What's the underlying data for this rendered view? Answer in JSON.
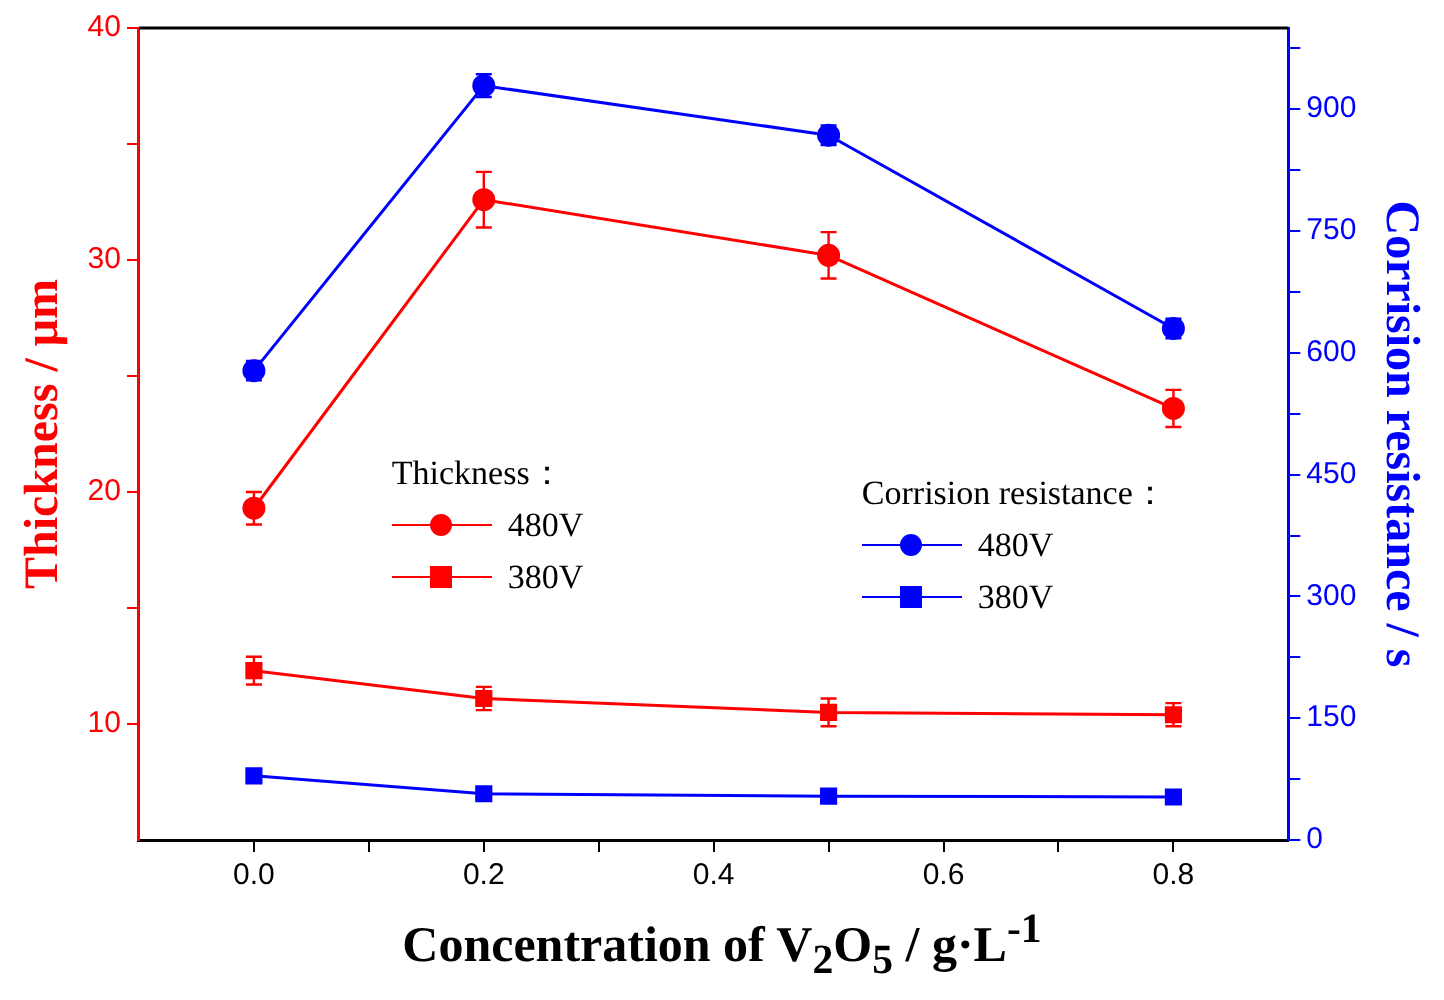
{
  "chart_data": {
    "type": "line",
    "x": [
      0,
      0.2,
      0.5,
      0.8
    ],
    "xlabel": "Concentration of V$_{2}$O$_{5}$ / g·L$^{-1}$",
    "ylabel": "Thickness / μm",
    "y2label": "Corrision resistance / s",
    "xlim": [
      -0.1,
      0.9
    ],
    "xticks": [
      {
        "value": 0,
        "label": "0.0"
      },
      {
        "value": 0.1,
        "label": null
      },
      0.2,
      {
        "value": 0.3,
        "label": null
      },
      0.4,
      {
        "value": 0.5,
        "label": null
      },
      0.6,
      {
        "value": 0.7,
        "label": null
      },
      0.8
    ],
    "ylim": [
      5,
      40
    ],
    "yticks": [
      10,
      {
        "value": 15,
        "label": null
      },
      20,
      {
        "value": 25,
        "label": null
      },
      30,
      {
        "value": 35,
        "label": null
      },
      40
    ],
    "y2lim": [
      0,
      1000
    ],
    "y2ticks": [
      0,
      {
        "value": 75,
        "label": null
      },
      150,
      {
        "value": 225,
        "label": null
      },
      300,
      {
        "value": 375,
        "label": null
      },
      450,
      {
        "value": 525,
        "label": null
      },
      600,
      {
        "value": 675,
        "label": null
      },
      750,
      {
        "value": 825,
        "label": null
      },
      900,
      {
        "value": 975,
        "label": null
      }
    ],
    "grid": false,
    "legend": "center",
    "annotations": [
      "Thickness：",
      "Corrision resistance："
    ],
    "series": [
      {
        "name": "480V",
        "color": "#ff0000",
        "marker": "circle",
        "values": [
          19.3,
          32.6,
          30.2,
          23.6
        ],
        "errors": [
          0.7,
          1.2,
          1.0,
          0.8
        ]
      },
      {
        "name": "380V",
        "color": "#ff0000",
        "marker": "square",
        "values": [
          12.3,
          11.1,
          10.5,
          10.4
        ],
        "errors": [
          0.6,
          0.5,
          0.6,
          0.5
        ]
      },
      {
        "name": "480V",
        "color": "#0000ff",
        "marker": "circle",
        "axis": "y2",
        "values": [
          578,
          929,
          868,
          630
        ],
        "errors": [
          12,
          14,
          12,
          12
        ]
      },
      {
        "name": "380V",
        "color": "#0000ff",
        "marker": "square",
        "axis": "y2",
        "values": [
          79,
          57,
          54,
          53
        ],
        "errors": [
          6,
          5,
          5,
          5
        ]
      }
    ]
  }
}
